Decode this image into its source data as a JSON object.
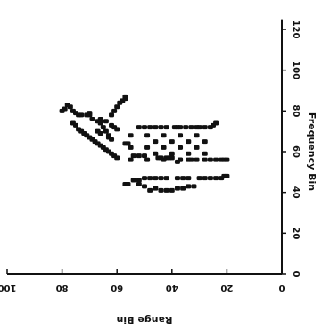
{
  "chart_data": {
    "type": "scatter",
    "title": "",
    "xlabel": "Range Bin",
    "ylabel": "Frequency Bin",
    "xlim": [
      0,
      100
    ],
    "ylim": [
      0,
      125
    ],
    "x_ticks": [
      {
        "value": 0,
        "label": "0"
      },
      {
        "value": 20,
        "label": "20"
      },
      {
        "value": 40,
        "label": "40"
      },
      {
        "value": 60,
        "label": "60"
      },
      {
        "value": 80,
        "label": "80"
      },
      {
        "value": 100,
        "label": "100"
      }
    ],
    "y_ticks": [
      {
        "value": 0,
        "label": "0"
      },
      {
        "value": 20,
        "label": "20"
      },
      {
        "value": 40,
        "label": "40"
      },
      {
        "value": 60,
        "label": "60"
      },
      {
        "value": 80,
        "label": "80"
      },
      {
        "value": 100,
        "label": "100"
      },
      {
        "value": 120,
        "label": "120"
      }
    ],
    "grid": false,
    "legend": "none",
    "color": "#111111",
    "series": [
      {
        "points": [
          [
            57,
            64
          ],
          [
            56,
            64
          ],
          [
            54,
            58
          ],
          [
            52,
            58
          ],
          [
            50,
            58
          ],
          [
            45,
            57
          ],
          [
            44,
            57
          ],
          [
            42,
            57
          ],
          [
            41,
            57
          ],
          [
            40,
            57
          ],
          [
            38,
            55
          ],
          [
            37,
            56
          ],
          [
            34,
            56
          ],
          [
            33,
            56
          ],
          [
            28,
            56
          ],
          [
            26,
            56
          ],
          [
            24,
            56
          ],
          [
            22,
            56
          ],
          [
            21,
            56
          ],
          [
            20,
            56
          ],
          [
            52,
            46
          ],
          [
            50,
            47
          ],
          [
            48,
            47
          ],
          [
            46,
            47
          ],
          [
            44,
            47
          ],
          [
            42,
            47
          ],
          [
            38,
            47
          ],
          [
            36,
            47
          ],
          [
            34,
            47
          ],
          [
            30,
            47
          ],
          [
            28,
            47
          ],
          [
            26,
            47
          ],
          [
            24,
            47
          ],
          [
            22,
            47
          ],
          [
            21,
            48
          ],
          [
            20,
            48
          ],
          [
            52,
            72
          ],
          [
            50,
            72
          ],
          [
            48,
            72
          ],
          [
            46,
            72
          ],
          [
            44,
            72
          ],
          [
            42,
            72
          ],
          [
            39,
            72
          ],
          [
            38,
            72
          ],
          [
            37,
            72
          ],
          [
            35,
            72
          ],
          [
            33,
            72
          ],
          [
            31,
            72
          ],
          [
            30,
            72
          ],
          [
            28,
            72
          ],
          [
            26,
            72
          ],
          [
            25,
            73
          ],
          [
            24,
            74
          ],
          [
            60,
            71
          ],
          [
            61,
            72
          ],
          [
            62,
            73
          ],
          [
            64,
            75
          ],
          [
            66,
            76
          ],
          [
            69,
            76
          ],
          [
            70,
            78
          ],
          [
            70,
            79
          ],
          [
            71,
            78
          ],
          [
            73,
            78
          ],
          [
            74,
            78
          ],
          [
            75,
            79
          ],
          [
            76,
            80
          ],
          [
            77,
            82
          ],
          [
            78,
            83
          ],
          [
            79,
            81
          ],
          [
            80,
            80
          ],
          [
            76,
            74
          ],
          [
            75,
            73
          ],
          [
            74,
            71
          ],
          [
            73,
            70
          ],
          [
            72,
            69
          ],
          [
            71,
            68
          ],
          [
            70,
            67
          ],
          [
            69,
            66
          ],
          [
            68,
            65
          ],
          [
            67,
            64
          ],
          [
            66,
            63
          ],
          [
            65,
            62
          ],
          [
            64,
            61
          ],
          [
            63,
            60
          ],
          [
            62,
            59
          ],
          [
            61,
            58
          ],
          [
            60,
            57
          ],
          [
            57,
            44
          ],
          [
            56,
            44
          ],
          [
            54,
            46
          ],
          [
            52,
            44
          ],
          [
            50,
            43
          ],
          [
            48,
            41
          ],
          [
            46,
            42
          ],
          [
            44,
            41
          ],
          [
            42,
            41
          ],
          [
            40,
            41
          ],
          [
            38,
            42
          ],
          [
            36,
            42
          ],
          [
            34,
            43
          ],
          [
            32,
            43
          ],
          [
            55,
            68
          ],
          [
            55,
            62
          ],
          [
            55,
            56
          ],
          [
            49,
            68
          ],
          [
            49,
            62
          ],
          [
            49,
            56
          ],
          [
            43,
            68
          ],
          [
            43,
            62
          ],
          [
            43,
            56
          ],
          [
            37,
            68
          ],
          [
            37,
            62
          ],
          [
            37,
            56
          ],
          [
            31,
            68
          ],
          [
            31,
            62
          ],
          [
            31,
            56
          ],
          [
            46,
            65
          ],
          [
            46,
            59
          ],
          [
            40,
            65
          ],
          [
            40,
            59
          ],
          [
            34,
            65
          ],
          [
            34,
            59
          ],
          [
            28,
            65
          ],
          [
            28,
            59
          ],
          [
            67,
            70
          ],
          [
            66,
            69
          ],
          [
            63,
            67
          ],
          [
            62,
            66
          ],
          [
            63,
            68
          ],
          [
            64,
            70
          ],
          [
            65,
            72
          ],
          [
            66,
            74
          ],
          [
            67,
            75
          ],
          [
            62,
            78
          ],
          [
            61,
            80
          ],
          [
            60,
            82
          ],
          [
            59,
            84
          ],
          [
            58,
            85
          ],
          [
            57,
            86
          ],
          [
            57,
            87
          ]
        ]
      }
    ]
  }
}
